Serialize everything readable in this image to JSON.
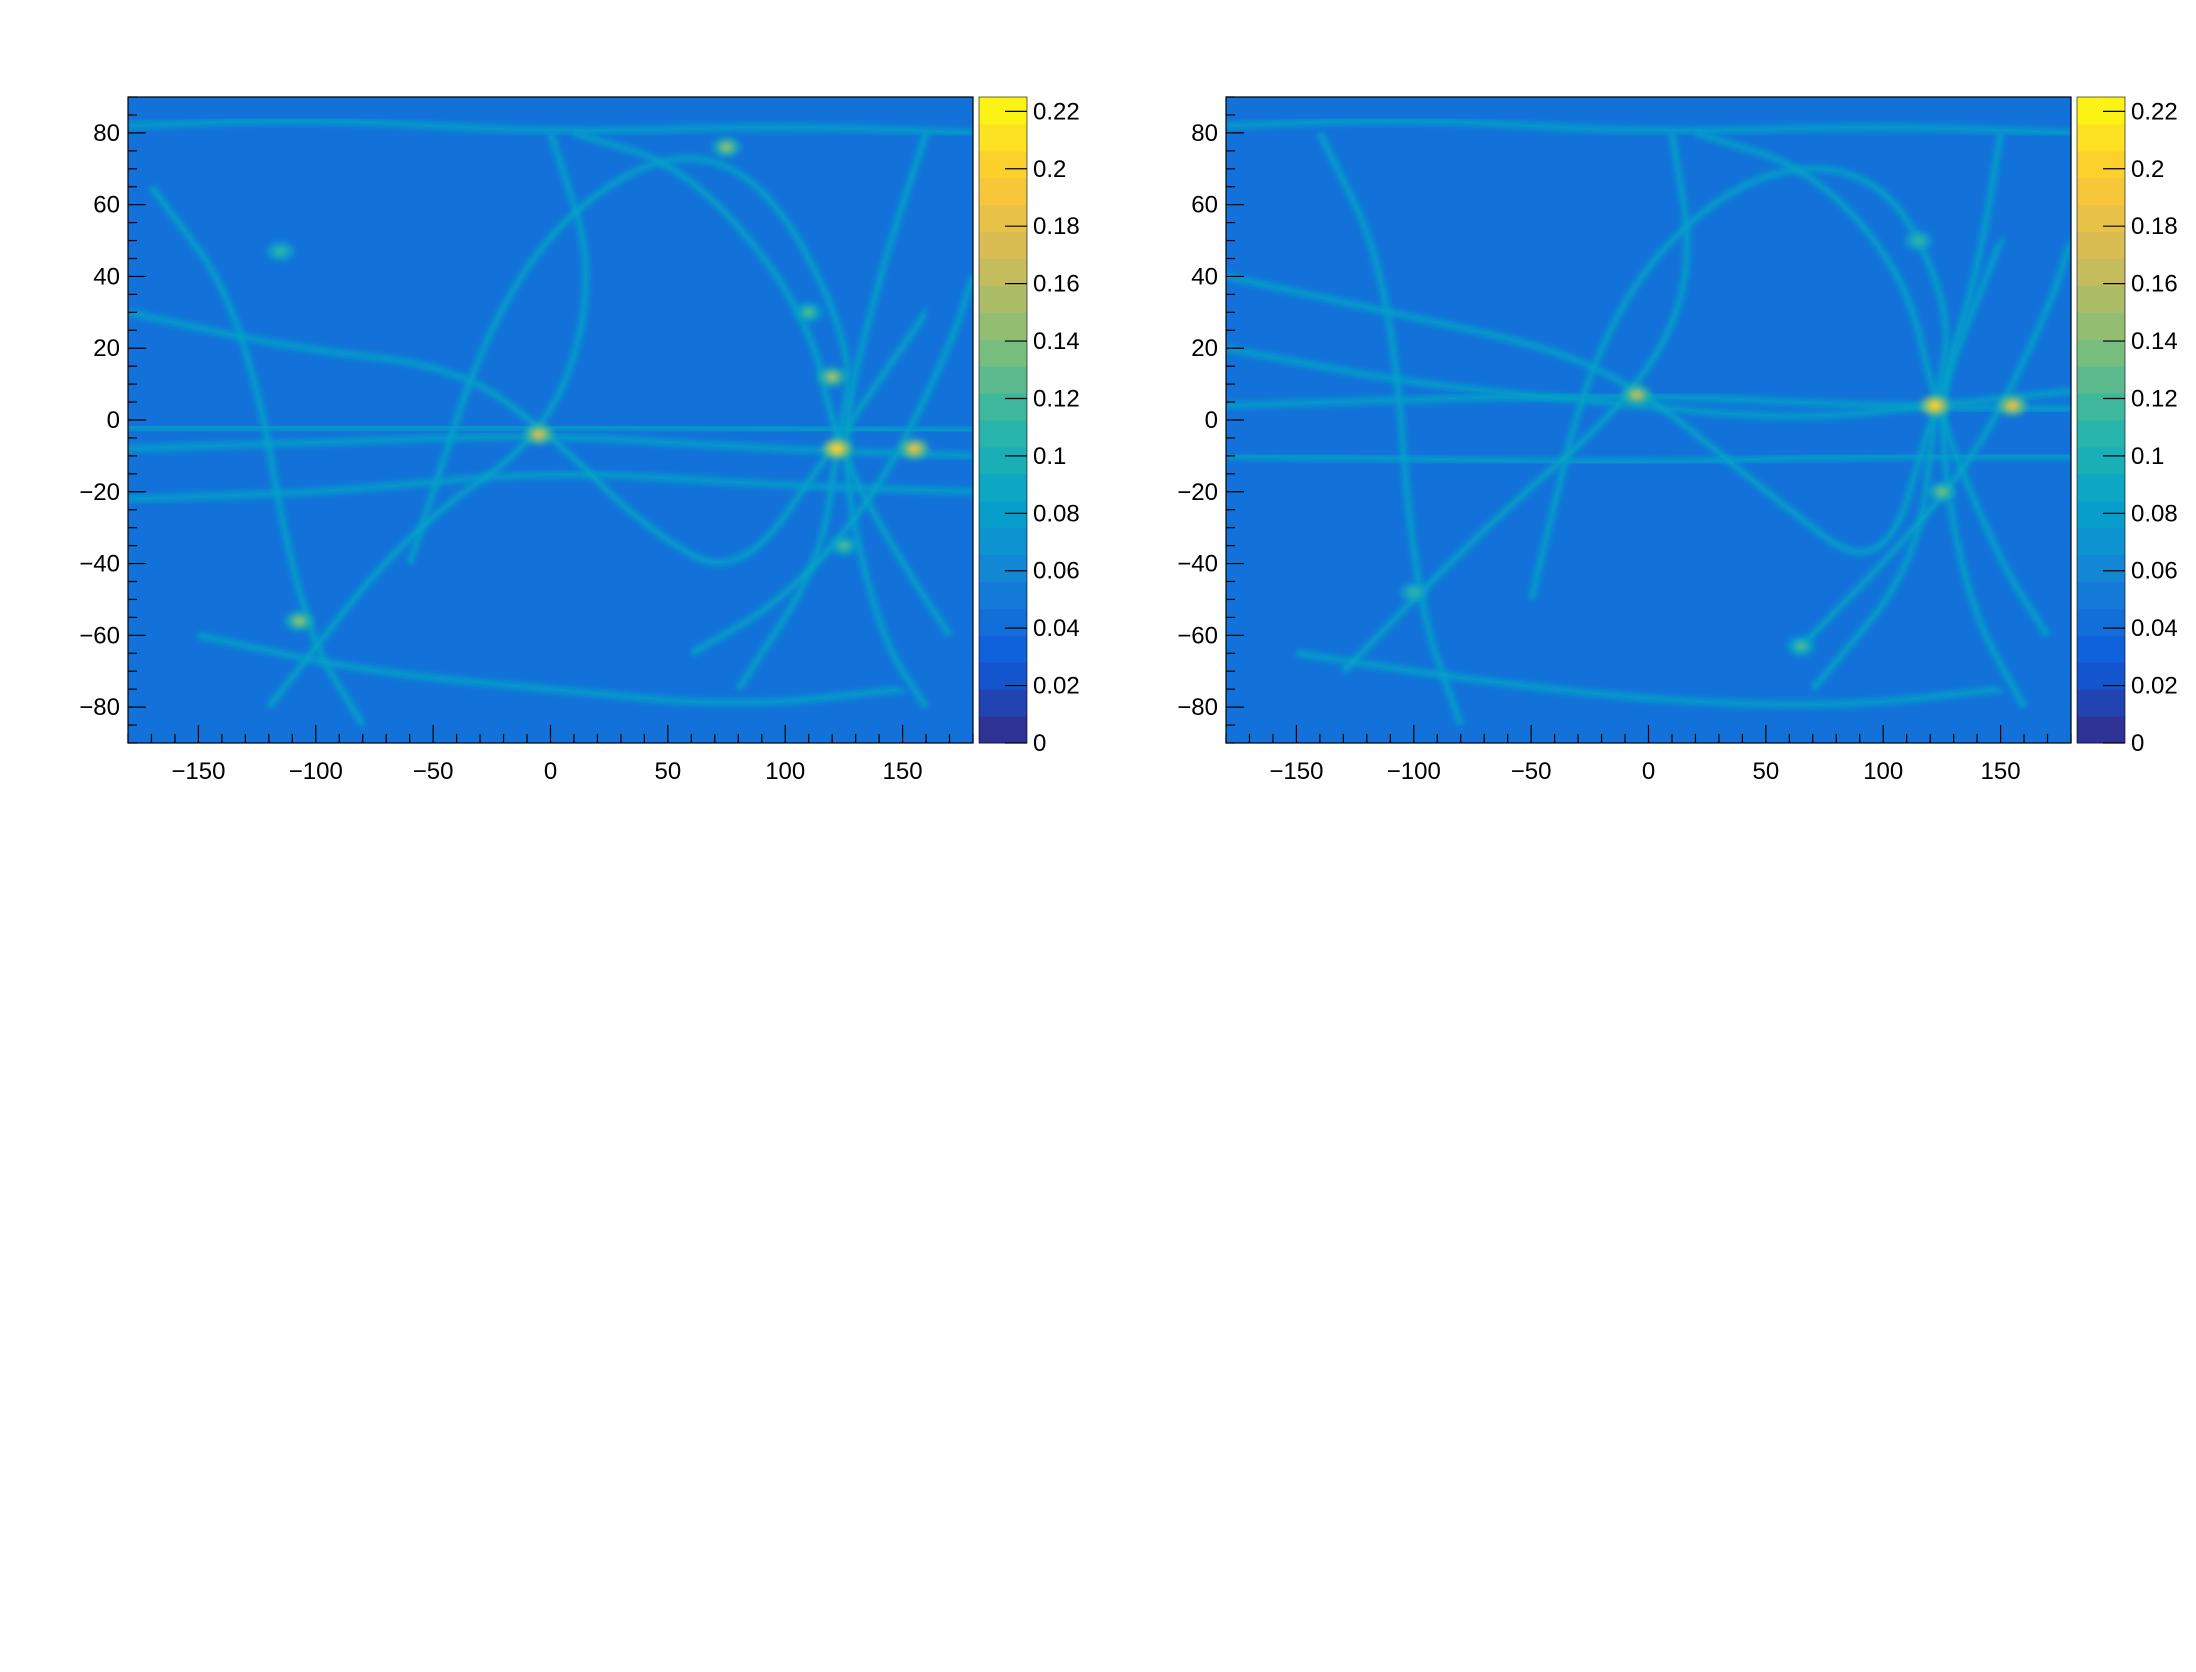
{
  "chart_data": [
    {
      "type": "heatmap",
      "title": "",
      "xlabel": "",
      "ylabel": "",
      "xlim": [
        -180,
        180
      ],
      "ylim": [
        -90,
        90
      ],
      "x_ticks": [
        -150,
        -100,
        -50,
        0,
        50,
        100,
        150
      ],
      "x_tick_labels": [
        "−150",
        "−100",
        "−50",
        "0",
        "50",
        "100",
        "150"
      ],
      "y_ticks": [
        80,
        60,
        40,
        20,
        0,
        -20,
        -40,
        -60,
        -80
      ],
      "y_tick_labels": [
        "80",
        "60",
        "40",
        "20",
        "0",
        "−20",
        "−40",
        "−60",
        "−80"
      ],
      "z_range": [
        0,
        0.225
      ],
      "z_ticks": [
        0,
        0.02,
        0.04,
        0.06,
        0.08,
        0.1,
        0.12,
        0.14,
        0.16,
        0.18,
        0.2,
        0.22
      ],
      "z_tick_labels": [
        "0",
        "0.02",
        "0.04",
        "0.06",
        "0.08",
        "0.1",
        "0.12",
        "0.14",
        "0.16",
        "0.18",
        "0.2",
        "0.22"
      ],
      "background_value": 0.045,
      "hotspots": [
        {
          "x": 122,
          "y": -8,
          "value": 0.2
        },
        {
          "x": 155,
          "y": -8,
          "value": 0.18
        },
        {
          "x": -5,
          "y": -4,
          "value": 0.17
        },
        {
          "x": 120,
          "y": 12,
          "value": 0.15
        },
        {
          "x": -107,
          "y": -56,
          "value": 0.14
        },
        {
          "x": 75,
          "y": 76,
          "value": 0.14
        },
        {
          "x": 110,
          "y": 30,
          "value": 0.12
        },
        {
          "x": 125,
          "y": -35,
          "value": 0.12
        },
        {
          "x": -115,
          "y": 47,
          "value": 0.11
        }
      ],
      "ring_paths": [
        [
          [
            -180,
            -8
          ],
          [
            -90,
            -6
          ],
          [
            0,
            -4
          ],
          [
            90,
            -8
          ],
          [
            180,
            -10
          ]
        ],
        [
          [
            -180,
            -22
          ],
          [
            -90,
            -20
          ],
          [
            0,
            -14
          ],
          [
            90,
            -18
          ],
          [
            180,
            -20
          ]
        ],
        [
          [
            -180,
            -2
          ],
          [
            -60,
            -2
          ],
          [
            40,
            -2
          ],
          [
            180,
            -3
          ]
        ],
        [
          [
            -170,
            65
          ],
          [
            -130,
            30
          ],
          [
            -107,
            -56
          ],
          [
            -80,
            -85
          ]
        ],
        [
          [
            -180,
            30
          ],
          [
            -110,
            20
          ],
          [
            -40,
            15
          ],
          [
            0,
            -4
          ],
          [
            40,
            -30
          ],
          [
            80,
            -45
          ],
          [
            120,
            -8
          ],
          [
            160,
            30
          ]
        ],
        [
          [
            -60,
            -40
          ],
          [
            -20,
            40
          ],
          [
            40,
            75
          ],
          [
            90,
            70
          ],
          [
            130,
            20
          ],
          [
            122,
            -8
          ],
          [
            115,
            -40
          ],
          [
            80,
            -75
          ]
        ],
        [
          [
            10,
            80
          ],
          [
            60,
            70
          ],
          [
            110,
            30
          ],
          [
            122,
            -8
          ],
          [
            150,
            -40
          ],
          [
            170,
            -60
          ]
        ],
        [
          [
            -150,
            -60
          ],
          [
            -80,
            -70
          ],
          [
            0,
            -75
          ],
          [
            80,
            -80
          ],
          [
            150,
            -75
          ]
        ],
        [
          [
            -180,
            82
          ],
          [
            -100,
            84
          ],
          [
            0,
            80
          ],
          [
            100,
            82
          ],
          [
            180,
            80
          ]
        ],
        [
          [
            -120,
            -80
          ],
          [
            -60,
            -30
          ],
          [
            0,
            -4
          ],
          [
            20,
            40
          ],
          [
            0,
            80
          ]
        ],
        [
          [
            160,
            80
          ],
          [
            140,
            40
          ],
          [
            122,
            -8
          ],
          [
            140,
            -60
          ],
          [
            160,
            -80
          ]
        ],
        [
          [
            60,
            -65
          ],
          [
            100,
            -50
          ],
          [
            140,
            -20
          ],
          [
            170,
            20
          ],
          [
            180,
            40
          ]
        ]
      ]
    },
    {
      "type": "heatmap",
      "title": "",
      "xlabel": "",
      "ylabel": "",
      "xlim": [
        -180,
        180
      ],
      "ylim": [
        -90,
        90
      ],
      "x_ticks": [
        -150,
        -100,
        -50,
        0,
        50,
        100,
        150
      ],
      "x_tick_labels": [
        "−150",
        "−100",
        "−50",
        "0",
        "50",
        "100",
        "150"
      ],
      "y_ticks": [
        80,
        60,
        40,
        20,
        0,
        -20,
        -40,
        -60,
        -80
      ],
      "y_tick_labels": [
        "80",
        "60",
        "40",
        "20",
        "0",
        "−20",
        "−40",
        "−60",
        "−80"
      ],
      "z_range": [
        0,
        0.225
      ],
      "z_ticks": [
        0,
        0.02,
        0.04,
        0.06,
        0.08,
        0.1,
        0.12,
        0.14,
        0.16,
        0.18,
        0.2,
        0.22
      ],
      "z_tick_labels": [
        "0",
        "0.02",
        "0.04",
        "0.06",
        "0.08",
        "0.1",
        "0.12",
        "0.14",
        "0.16",
        "0.18",
        "0.2",
        "0.22"
      ],
      "background_value": 0.045,
      "hotspots": [
        {
          "x": 122,
          "y": 4,
          "value": 0.2
        },
        {
          "x": 155,
          "y": 4,
          "value": 0.18
        },
        {
          "x": -5,
          "y": 7,
          "value": 0.16
        },
        {
          "x": 125,
          "y": -20,
          "value": 0.13
        },
        {
          "x": 65,
          "y": -63,
          "value": 0.12
        },
        {
          "x": -100,
          "y": -48,
          "value": 0.11
        },
        {
          "x": 115,
          "y": 50,
          "value": 0.11
        }
      ],
      "ring_paths": [
        [
          [
            -180,
            4
          ],
          [
            -90,
            6
          ],
          [
            0,
            7
          ],
          [
            90,
            4
          ],
          [
            180,
            3
          ]
        ],
        [
          [
            -180,
            -10
          ],
          [
            -90,
            -11
          ],
          [
            0,
            -12
          ],
          [
            90,
            -10
          ],
          [
            180,
            -10
          ]
        ],
        [
          [
            -180,
            20
          ],
          [
            -100,
            10
          ],
          [
            -20,
            5
          ],
          [
            60,
            0
          ],
          [
            122,
            4
          ],
          [
            180,
            8
          ]
        ],
        [
          [
            -140,
            80
          ],
          [
            -110,
            40
          ],
          [
            -100,
            -48
          ],
          [
            -80,
            -85
          ]
        ],
        [
          [
            -180,
            40
          ],
          [
            -110,
            30
          ],
          [
            -40,
            20
          ],
          [
            0,
            7
          ],
          [
            50,
            -20
          ],
          [
            100,
            -45
          ],
          [
            122,
            4
          ],
          [
            150,
            50
          ]
        ],
        [
          [
            -50,
            -50
          ],
          [
            -20,
            30
          ],
          [
            40,
            70
          ],
          [
            100,
            70
          ],
          [
            130,
            30
          ],
          [
            122,
            4
          ],
          [
            115,
            -40
          ],
          [
            70,
            -75
          ]
        ],
        [
          [
            20,
            80
          ],
          [
            70,
            70
          ],
          [
            110,
            40
          ],
          [
            122,
            4
          ],
          [
            150,
            -40
          ],
          [
            170,
            -60
          ]
        ],
        [
          [
            -150,
            -65
          ],
          [
            -80,
            -72
          ],
          [
            0,
            -78
          ],
          [
            80,
            -80
          ],
          [
            150,
            -75
          ]
        ],
        [
          [
            -180,
            82
          ],
          [
            -100,
            84
          ],
          [
            0,
            80
          ],
          [
            100,
            82
          ],
          [
            180,
            80
          ]
        ],
        [
          [
            -130,
            -70
          ],
          [
            -70,
            -30
          ],
          [
            -5,
            7
          ],
          [
            20,
            40
          ],
          [
            10,
            80
          ]
        ],
        [
          [
            150,
            80
          ],
          [
            140,
            40
          ],
          [
            122,
            4
          ],
          [
            135,
            -50
          ],
          [
            160,
            -80
          ]
        ],
        [
          [
            65,
            -63
          ],
          [
            100,
            -40
          ],
          [
            140,
            -10
          ],
          [
            170,
            30
          ],
          [
            180,
            50
          ]
        ]
      ]
    }
  ],
  "palette": {
    "background": "#ffffff",
    "colorscale": [
      "#352a87",
      "#0f5cdd",
      "#1481d6",
      "#06a4ca",
      "#2eb7a4",
      "#87bf77",
      "#d1bb59",
      "#fec832",
      "#f9fb0e"
    ]
  }
}
